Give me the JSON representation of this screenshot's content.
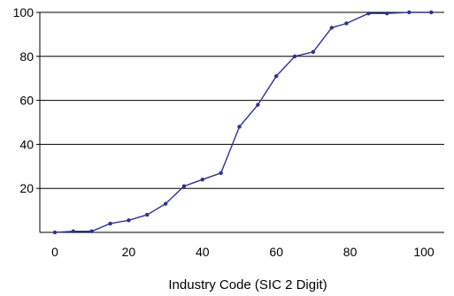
{
  "chart_data": {
    "type": "line",
    "title": "",
    "xlabel": "Industry Code (SIC 2 Digit)",
    "ylabel": "",
    "xlim": [
      0,
      100
    ],
    "ylim": [
      0,
      100
    ],
    "x_ticks": [
      0,
      20,
      40,
      60,
      80,
      100
    ],
    "y_ticks": [
      20,
      40,
      60,
      80,
      100
    ],
    "grid": "horizontal",
    "legend": "none",
    "colors": {
      "series": "#2e3192",
      "gridline": "#000000",
      "axis": "#000000"
    },
    "series": [
      {
        "x": [
          0,
          5,
          10,
          15,
          20,
          25,
          30,
          35,
          40,
          45,
          50,
          55,
          60,
          65,
          70,
          75,
          79,
          85,
          90,
          96,
          102
        ],
        "y": [
          0,
          0.5,
          0.5,
          4,
          5.5,
          8,
          13,
          21,
          24,
          27,
          48,
          58,
          71,
          80,
          82,
          93,
          95,
          99.5,
          99.5,
          100,
          100
        ]
      }
    ]
  }
}
